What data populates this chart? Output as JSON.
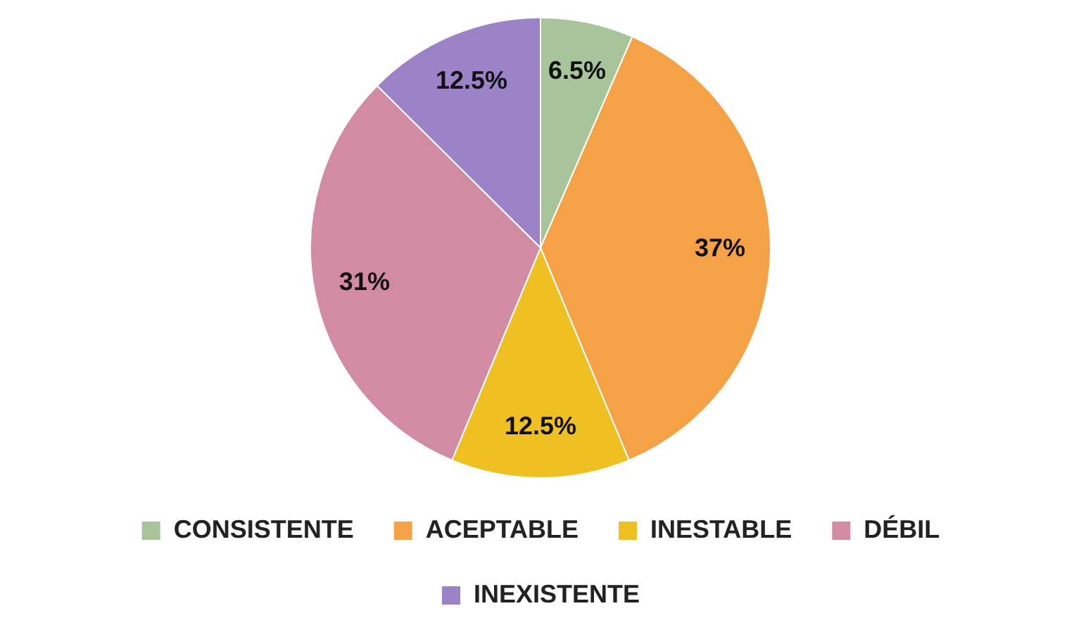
{
  "chart_data": {
    "type": "pie",
    "categories": [
      "CONSISTENTE",
      "ACEPTABLE",
      "INESTABLE",
      "DÉBIL",
      "INEXISTENTE"
    ],
    "values": [
      6.5,
      37,
      12.5,
      31,
      12.5
    ],
    "colors": [
      "#a8c49a",
      "#f5a247",
      "#eec022",
      "#d28ba3",
      "#9c82c6"
    ],
    "value_labels": [
      "6.5%",
      "37%",
      "12.5%",
      "31%",
      "12.5%"
    ],
    "legend": "bottom"
  }
}
